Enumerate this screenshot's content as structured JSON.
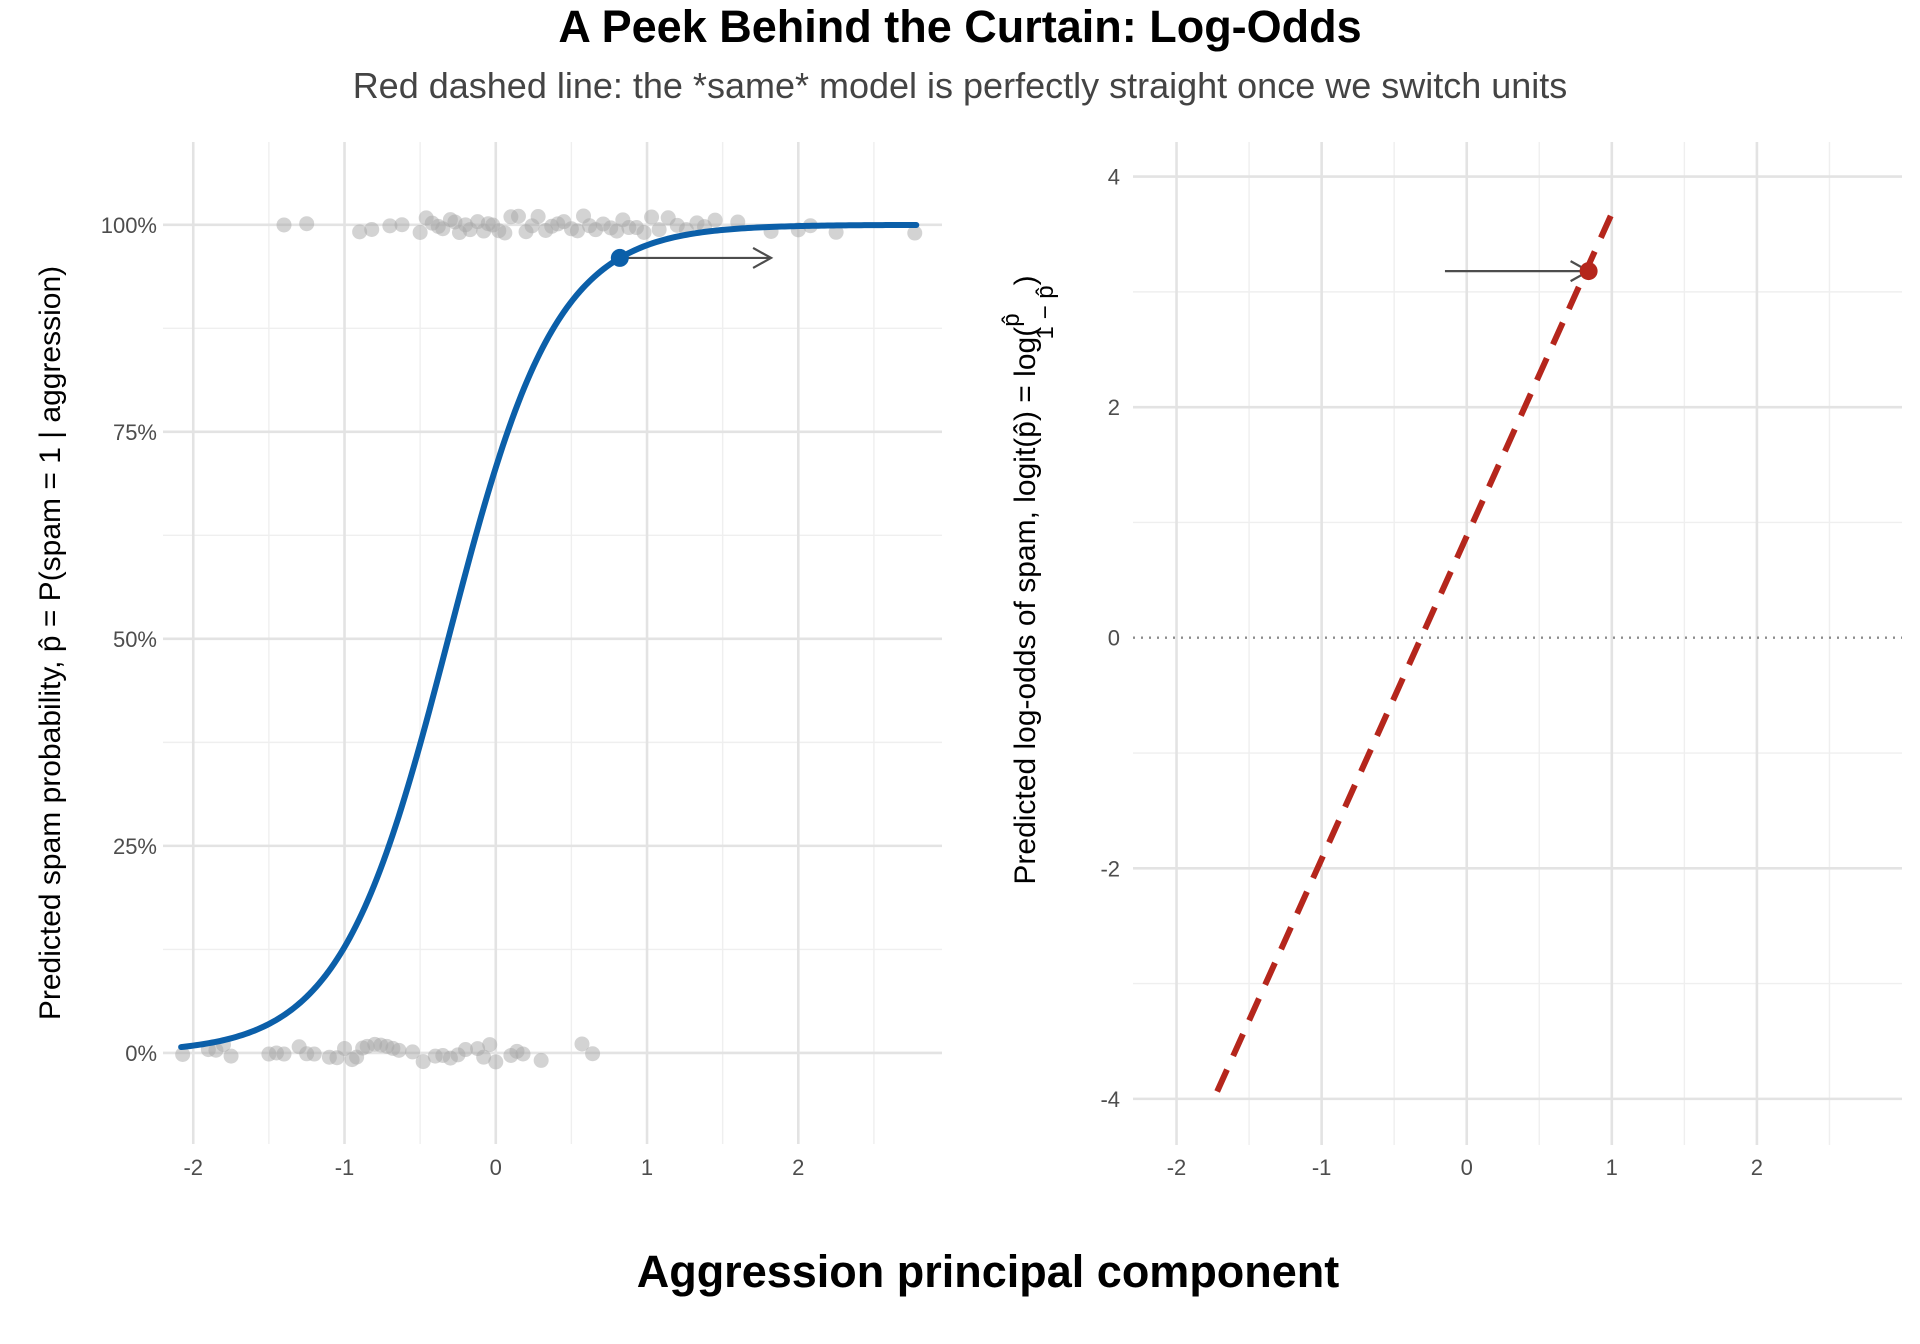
{
  "figure": {
    "title": "A Peek Behind the Curtain: Log-Odds",
    "subtitle": "Red dashed line: the *same* model is perfectly straight once we switch units",
    "xlabel": "Aggression principal component"
  },
  "colors": {
    "curve": "#0b5fa9",
    "dashed_line": "#b5261c",
    "points": "#a8a8a8",
    "arrow": "#4d4d4d",
    "zero_line": "#8c8c8c"
  },
  "chart_data": [
    {
      "type": "scatter",
      "panel": "left",
      "ylabel": "Predicted spam probability,  p̂ = P(spam = 1 | aggression)",
      "xlim": [
        -2.2,
        2.95
      ],
      "ylim": [
        -0.11,
        1.1
      ],
      "x_ticks": [
        -2,
        -1,
        0,
        1,
        2
      ],
      "x_tick_labels": [
        "-2",
        "-1",
        "0",
        "1",
        "2"
      ],
      "y_ticks": [
        0,
        0.25,
        0.5,
        0.75,
        1
      ],
      "y_tick_labels": [
        "0%",
        "25%",
        "50%",
        "75%",
        "100%"
      ],
      "grid": true,
      "model": {
        "kind": "logistic",
        "intercept": 0.88,
        "slope": 2.8,
        "x_range": [
          -2.08,
          2.78
        ]
      },
      "highlight_point": {
        "x": 0.82,
        "y": 0.96
      },
      "arrow": {
        "x_start": 0.86,
        "x_end": 1.82,
        "y": 0.96
      },
      "points_spam": [
        [
          -1.4,
          1
        ],
        [
          -1.25,
          1
        ],
        [
          -0.9,
          1
        ],
        [
          -0.82,
          1
        ],
        [
          -0.7,
          1
        ],
        [
          -0.62,
          1
        ],
        [
          -0.5,
          1
        ],
        [
          -0.46,
          1
        ],
        [
          -0.42,
          1
        ],
        [
          -0.38,
          1
        ],
        [
          -0.35,
          1
        ],
        [
          -0.3,
          1
        ],
        [
          -0.27,
          1
        ],
        [
          -0.24,
          1
        ],
        [
          -0.2,
          1
        ],
        [
          -0.17,
          1
        ],
        [
          -0.12,
          1
        ],
        [
          -0.08,
          1
        ],
        [
          -0.05,
          1
        ],
        [
          -0.02,
          1
        ],
        [
          0.02,
          1
        ],
        [
          0.06,
          1
        ],
        [
          0.1,
          1
        ],
        [
          0.15,
          1
        ],
        [
          0.2,
          1
        ],
        [
          0.24,
          1
        ],
        [
          0.28,
          1
        ],
        [
          0.33,
          1
        ],
        [
          0.37,
          1
        ],
        [
          0.41,
          1
        ],
        [
          0.45,
          1
        ],
        [
          0.5,
          1
        ],
        [
          0.54,
          1
        ],
        [
          0.58,
          1
        ],
        [
          0.62,
          1
        ],
        [
          0.66,
          1
        ],
        [
          0.71,
          1
        ],
        [
          0.76,
          1
        ],
        [
          0.8,
          1
        ],
        [
          0.84,
          1
        ],
        [
          0.88,
          1
        ],
        [
          0.93,
          1
        ],
        [
          0.98,
          1
        ],
        [
          1.03,
          1
        ],
        [
          1.08,
          1
        ],
        [
          1.14,
          1
        ],
        [
          1.2,
          1
        ],
        [
          1.26,
          1
        ],
        [
          1.33,
          1
        ],
        [
          1.38,
          1
        ],
        [
          1.45,
          1
        ],
        [
          1.6,
          1
        ],
        [
          1.82,
          1
        ],
        [
          2.0,
          1
        ],
        [
          2.08,
          1
        ],
        [
          2.25,
          1
        ],
        [
          2.77,
          1
        ]
      ],
      "points_ham": [
        [
          -2.07,
          0
        ],
        [
          -1.9,
          0
        ],
        [
          -1.85,
          0
        ],
        [
          -1.8,
          0
        ],
        [
          -1.75,
          0
        ],
        [
          -1.5,
          0
        ],
        [
          -1.45,
          0
        ],
        [
          -1.4,
          0
        ],
        [
          -1.3,
          0
        ],
        [
          -1.25,
          0
        ],
        [
          -1.2,
          0
        ],
        [
          -1.1,
          0
        ],
        [
          -1.05,
          0
        ],
        [
          -1.0,
          0
        ],
        [
          -0.95,
          0
        ],
        [
          -0.92,
          0
        ],
        [
          -0.88,
          0
        ],
        [
          -0.85,
          0
        ],
        [
          -0.8,
          0
        ],
        [
          -0.76,
          0
        ],
        [
          -0.72,
          0
        ],
        [
          -0.68,
          0
        ],
        [
          -0.64,
          0
        ],
        [
          -0.55,
          0
        ],
        [
          -0.48,
          0
        ],
        [
          -0.4,
          0
        ],
        [
          -0.35,
          0
        ],
        [
          -0.3,
          0
        ],
        [
          -0.25,
          0
        ],
        [
          -0.2,
          0
        ],
        [
          -0.12,
          0
        ],
        [
          -0.08,
          0
        ],
        [
          -0.04,
          0
        ],
        [
          0.0,
          0
        ],
        [
          0.1,
          0
        ],
        [
          0.14,
          0
        ],
        [
          0.18,
          0
        ],
        [
          0.3,
          0
        ],
        [
          0.57,
          0
        ],
        [
          0.64,
          0
        ]
      ]
    },
    {
      "type": "line",
      "panel": "right",
      "ylabel": "Predicted log-odds of spam,  logit(p̂) = log(p̂ / (1 − p̂))",
      "ylabel_prefix": "Predicted log-odds of spam,  logit(",
      "ylabel_p": "p̂",
      "ylabel_mid": ") = log(",
      "ylabel_frac_num": "p̂",
      "ylabel_frac_den": "1 − p̂",
      "ylabel_suffix": ")",
      "xlim": [
        -2.3,
        3.0
      ],
      "ylim": [
        -4.4,
        4.3
      ],
      "x_ticks": [
        -2,
        -1,
        0,
        1,
        2
      ],
      "x_tick_labels": [
        "-2",
        "-1",
        "0",
        "1",
        "2"
      ],
      "y_ticks": [
        -4,
        -2,
        0,
        2,
        4
      ],
      "y_tick_labels": [
        "-4",
        "-2",
        "0",
        "2",
        "4"
      ],
      "grid": true,
      "zero_reference": true,
      "model": {
        "kind": "linear",
        "intercept": 0.88,
        "slope": 2.8,
        "x_range": [
          -1.72,
          1.0
        ]
      },
      "highlight_point": {
        "x": 0.84,
        "y": 3.18
      },
      "arrow": {
        "x_start": -0.15,
        "x_end": 0.84,
        "y": 3.18
      }
    }
  ]
}
